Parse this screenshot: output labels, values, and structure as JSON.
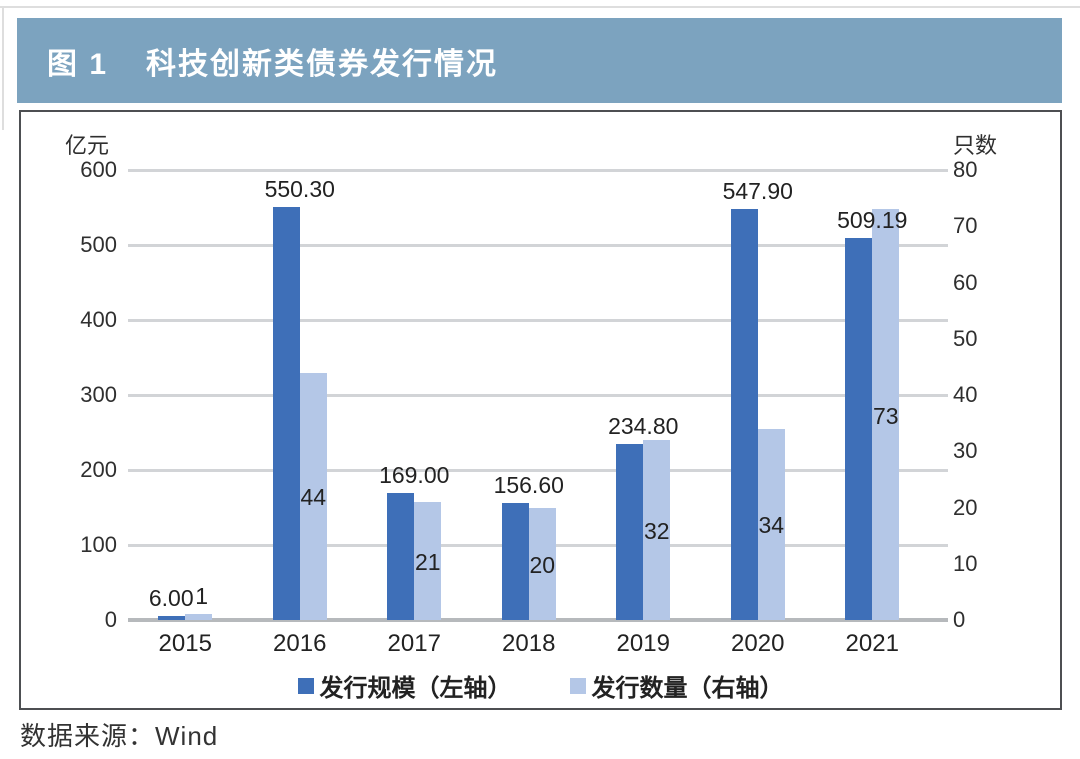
{
  "header": {
    "figure_label": "图 1",
    "title": "科技创新类债券发行情况"
  },
  "source": "数据来源：Wind",
  "colors": {
    "header_bg": "#7ca3bf",
    "primary": "#3e6fb8",
    "secondary": "#b4c7e7",
    "grid": "#d2d4d7",
    "baseline": "#b6b9bc"
  },
  "chart_data": {
    "type": "bar",
    "title": "图 1 科技创新类债券发行情况",
    "categories": [
      "2015",
      "2016",
      "2017",
      "2018",
      "2019",
      "2020",
      "2021"
    ],
    "series": [
      {
        "name": "发行规模（左轴）",
        "axis": "left",
        "color": "#3e6fb8",
        "values": [
          6.0,
          550.3,
          169.0,
          156.6,
          234.8,
          547.9,
          509.19
        ],
        "labels": [
          "6.00",
          "550.30",
          "169.00",
          "156.60",
          "234.80",
          "547.90",
          "509.19"
        ]
      },
      {
        "name": "发行数量（右轴）",
        "axis": "right",
        "color": "#b4c7e7",
        "values": [
          1,
          44,
          21,
          20,
          32,
          34,
          73
        ],
        "labels": [
          "1",
          "44",
          "21",
          "20",
          "32",
          "34",
          "73"
        ]
      }
    ],
    "axes": {
      "left": {
        "label": "亿元",
        "min": 0,
        "max": 600,
        "ticks": [
          600,
          500,
          400,
          300,
          200,
          100,
          0
        ]
      },
      "right": {
        "label": "只数",
        "min": 0,
        "max": 80,
        "ticks": [
          80,
          70,
          60,
          50,
          40,
          30,
          20,
          10,
          0
        ]
      }
    },
    "legend": {
      "position": "bottom",
      "entries": [
        "发行规模（左轴）",
        "发行数量（右轴）"
      ]
    },
    "grid": true
  }
}
